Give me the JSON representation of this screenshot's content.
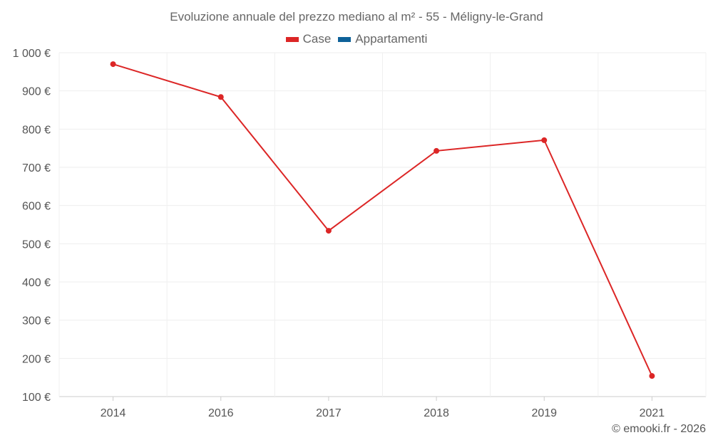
{
  "chart_data": {
    "type": "line",
    "title": "Evoluzione annuale del prezzo mediano al m² - 55 - Méligny-le-Grand",
    "categories": [
      "2014",
      "2016",
      "2017",
      "2018",
      "2019",
      "2021"
    ],
    "series": [
      {
        "name": "Case",
        "color": "#dc2626",
        "values": [
          970,
          884,
          534,
          743,
          771,
          154
        ]
      },
      {
        "name": "Appartamenti",
        "color": "#0e6199",
        "values": [
          null,
          null,
          null,
          null,
          null,
          null
        ]
      }
    ],
    "ylim": [
      100,
      1000
    ],
    "yticks": [
      100,
      200,
      300,
      400,
      500,
      600,
      700,
      800,
      900,
      1000
    ],
    "ytick_labels": [
      "100 €",
      "200 €",
      "300 €",
      "400 €",
      "500 €",
      "600 €",
      "700 €",
      "800 €",
      "900 €",
      "1 000 €"
    ],
    "xlabel": "",
    "ylabel": "",
    "grid": true,
    "legend": "top-center"
  },
  "credit": "© emooki.fr - 2026"
}
